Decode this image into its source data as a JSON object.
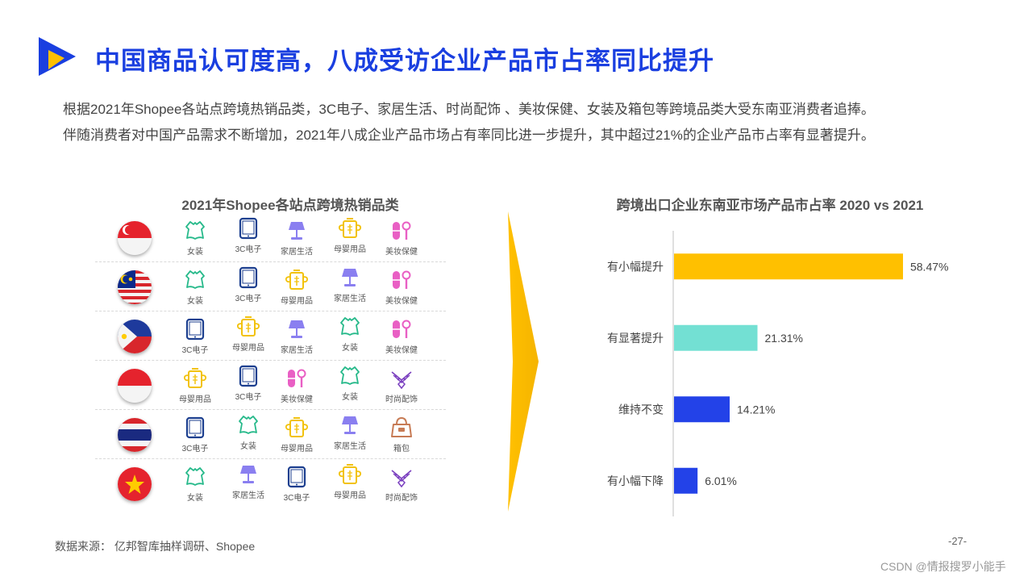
{
  "page": {
    "title": "中国商品认可度高，八成受访企业产品市占率同比提升",
    "intro": [
      "根据2021年Shopee各站点跨境热销品类，3C电子、家居生活、时尚配饰 、美妆保健、女装及箱包等跨境品类大受东南亚消费者追捧。",
      "伴随消费者对中国产品需求不断增加，2021年八成企业产品市场占有率同比进一步提升，其中超过21%的企业产品市占率有显著提升。"
    ],
    "source": "数据来源： 亿邦智库抽样调研、Shopee",
    "page_number": "-27-",
    "watermark": "CSDN @情报搜罗小能手"
  },
  "colors": {
    "title_blue": "#1a3fe0",
    "bar_gold": "#ffc000",
    "bar_teal": "#73e0d3",
    "bar_blue": "#2342e8",
    "icon_green": "#26b98a",
    "icon_navy": "#1c3f8f",
    "icon_purple": "#8a7ff0",
    "icon_yellow": "#f2c20d",
    "icon_pink": "#e95fc4",
    "icon_violet": "#7a3fbf",
    "icon_bag": "#c77b55"
  },
  "left": {
    "title": "2021年Shopee各站点跨境热销品类",
    "rows": [
      {
        "flag": "singapore-flag",
        "items": [
          {
            "icon": "dress-icon",
            "label": "女装"
          },
          {
            "icon": "tablet-icon",
            "label": "3C电子"
          },
          {
            "icon": "lamp-icon",
            "label": "家居生活"
          },
          {
            "icon": "pot-icon",
            "label": "母婴用品"
          },
          {
            "icon": "cosmetics-icon",
            "label": "美妆保健"
          }
        ]
      },
      {
        "flag": "malaysia-flag",
        "items": [
          {
            "icon": "dress-icon",
            "label": "女装"
          },
          {
            "icon": "tablet-icon",
            "label": "3C电子"
          },
          {
            "icon": "pot-icon",
            "label": "母婴用品"
          },
          {
            "icon": "lamp-icon",
            "label": "家居生活"
          },
          {
            "icon": "cosmetics-icon",
            "label": "美妆保健"
          }
        ]
      },
      {
        "flag": "philippines-flag",
        "items": [
          {
            "icon": "tablet-icon",
            "label": "3C电子"
          },
          {
            "icon": "pot-icon",
            "label": "母婴用品"
          },
          {
            "icon": "lamp-icon",
            "label": "家居生活"
          },
          {
            "icon": "dress-icon",
            "label": "女装"
          },
          {
            "icon": "cosmetics-icon",
            "label": "美妆保健"
          }
        ]
      },
      {
        "flag": "indonesia-flag",
        "items": [
          {
            "icon": "pot-icon",
            "label": "母婴用品"
          },
          {
            "icon": "tablet-icon",
            "label": "3C电子"
          },
          {
            "icon": "cosmetics-icon",
            "label": "美妆保健"
          },
          {
            "icon": "dress-icon",
            "label": "女装"
          },
          {
            "icon": "necklace-icon",
            "label": "时尚配饰"
          }
        ]
      },
      {
        "flag": "thailand-flag",
        "items": [
          {
            "icon": "tablet-icon",
            "label": "3C电子"
          },
          {
            "icon": "dress-icon",
            "label": "女装"
          },
          {
            "icon": "pot-icon",
            "label": "母婴用品"
          },
          {
            "icon": "lamp-icon",
            "label": "家居生活"
          },
          {
            "icon": "bag-icon",
            "label": "箱包"
          }
        ]
      },
      {
        "flag": "vietnam-flag",
        "items": [
          {
            "icon": "dress-icon",
            "label": "女装"
          },
          {
            "icon": "lamp-icon",
            "label": "家居生活"
          },
          {
            "icon": "tablet-icon",
            "label": "3C电子"
          },
          {
            "icon": "pot-icon",
            "label": "母婴用品"
          },
          {
            "icon": "necklace-icon",
            "label": "时尚配饰"
          }
        ]
      }
    ]
  },
  "chart_data": {
    "type": "bar",
    "orientation": "horizontal",
    "title": "跨境出口企业东南亚市场产品市占率 2020 vs 2021",
    "categories": [
      "有小幅提升",
      "有显著提升",
      "维持不变",
      "有小幅下降"
    ],
    "values": [
      58.47,
      21.31,
      14.21,
      6.01
    ],
    "value_labels": [
      "58.47%",
      "21.31%",
      "14.21%",
      "6.01%"
    ],
    "colors": [
      "#ffc000",
      "#73e0d3",
      "#2342e8",
      "#2342e8"
    ],
    "xlim": [
      0,
      70
    ],
    "grid": false
  }
}
